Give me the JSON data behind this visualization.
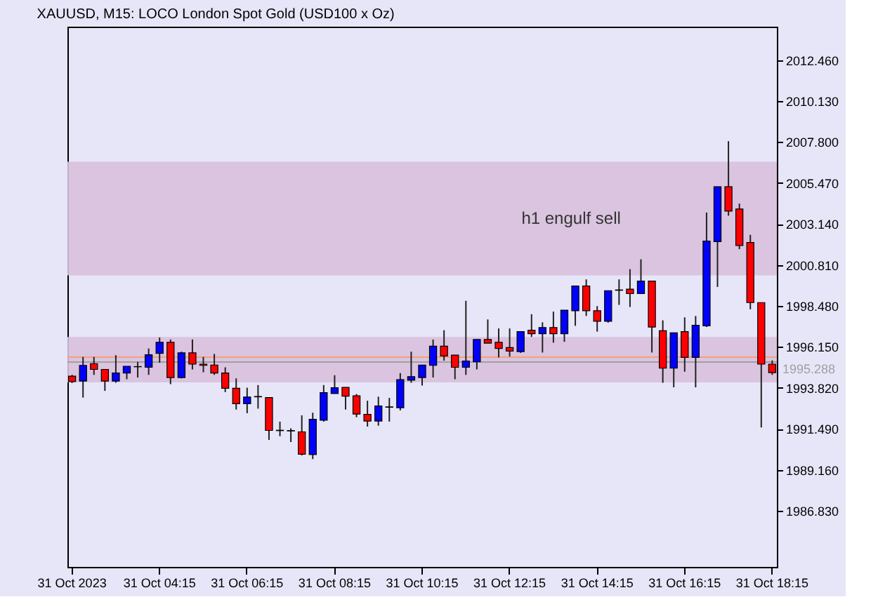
{
  "chart_data": {
    "type": "candlestick",
    "title": "XAUUSD, M15:  LOCO London Spot Gold (USD100 x Oz)",
    "categories": [
      "31 Oct 2023",
      null,
      null,
      null,
      null,
      null,
      null,
      null,
      "31 Oct 04:15",
      null,
      null,
      null,
      null,
      null,
      null,
      null,
      "31 Oct 06:15",
      null,
      null,
      null,
      null,
      null,
      null,
      null,
      "31 Oct 08:15",
      null,
      null,
      null,
      null,
      null,
      null,
      null,
      "31 Oct 10:15",
      null,
      null,
      null,
      null,
      null,
      null,
      null,
      "31 Oct 12:15",
      null,
      null,
      null,
      null,
      null,
      null,
      null,
      "31 Oct 14:15",
      null,
      null,
      null,
      null,
      null,
      null,
      null,
      "31 Oct 16:15",
      null,
      null,
      null,
      null,
      null,
      null,
      null,
      "31 Oct 18:15"
    ],
    "ohlc": [
      [
        1994.49,
        1994.56,
        1994.1,
        1994.18
      ],
      [
        1994.21,
        1995.58,
        1993.27,
        1995.1
      ],
      [
        1995.2,
        1995.58,
        1994.56,
        1994.87
      ],
      [
        1994.87,
        1994.87,
        1993.65,
        1994.21
      ],
      [
        1994.21,
        1995.68,
        1994.11,
        1994.67
      ],
      [
        1994.67,
        1995.05,
        1994.31,
        1995.05
      ],
      [
        1995.03,
        1995.3,
        1994.41,
        1995.02
      ],
      [
        1994.99,
        1996.06,
        1994.56,
        1995.7
      ],
      [
        1995.78,
        1996.69,
        1995.25,
        1996.41
      ],
      [
        1996.41,
        1996.57,
        1994.03,
        1994.41
      ],
      [
        1994.41,
        1995.88,
        1994.36,
        1995.81
      ],
      [
        1995.81,
        1996.57,
        1994.87,
        1995.17
      ],
      [
        1995.17,
        1995.58,
        1994.71,
        1995.1
      ],
      [
        1995.12,
        1995.75,
        1994.56,
        1994.67
      ],
      [
        1994.67,
        1994.99,
        1993.58,
        1993.8
      ],
      [
        1993.8,
        1994.36,
        1992.59,
        1992.92
      ],
      [
        1992.92,
        1993.83,
        1992.38,
        1993.3
      ],
      [
        1993.33,
        1993.98,
        1992.64,
        1993.31
      ],
      [
        1993.27,
        1993.27,
        1990.86,
        1991.4
      ],
      [
        1991.41,
        1991.9,
        1991.07,
        1991.39
      ],
      [
        1991.39,
        1991.52,
        1990.74,
        1991.37
      ],
      [
        1991.32,
        1992.26,
        1989.98,
        1990.05
      ],
      [
        1990.03,
        1992.41,
        1989.77,
        1992.03
      ],
      [
        1991.98,
        1993.98,
        1991.9,
        1993.55
      ],
      [
        1993.5,
        1994.54,
        1993.5,
        1993.83
      ],
      [
        1993.85,
        1993.85,
        1992.59,
        1993.35
      ],
      [
        1993.37,
        1993.47,
        1992.15,
        1992.33
      ],
      [
        1992.31,
        1993.09,
        1991.62,
        1991.93
      ],
      [
        1991.93,
        1993.32,
        1991.67,
        1992.79
      ],
      [
        1992.74,
        1993.25,
        1991.9,
        1992.72
      ],
      [
        1992.69,
        1994.66,
        1992.54,
        1994.29
      ],
      [
        1994.26,
        1995.88,
        1994.11,
        1994.46
      ],
      [
        1994.41,
        1995.12,
        1993.95,
        1995.12
      ],
      [
        1995.1,
        1996.57,
        1994.41,
        1996.19
      ],
      [
        1996.19,
        1997.1,
        1995.37,
        1995.63
      ],
      [
        1995.68,
        1995.68,
        1994.31,
        1994.99
      ],
      [
        1994.99,
        1998.77,
        1994.56,
        1995.35
      ],
      [
        1995.3,
        1996.57,
        1994.87,
        1996.57
      ],
      [
        1996.57,
        1997.71,
        1996.36,
        1996.36
      ],
      [
        1996.41,
        1997.2,
        1995.55,
        1996.06
      ],
      [
        1996.11,
        1997.2,
        1995.6,
        1995.91
      ],
      [
        1995.88,
        1997.02,
        1995.81,
        1997.02
      ],
      [
        1997.1,
        1998.01,
        1996.72,
        1996.9
      ],
      [
        1996.9,
        1997.55,
        1995.83,
        1997.25
      ],
      [
        1997.25,
        1998.16,
        1996.39,
        1996.9
      ],
      [
        1996.9,
        1998.24,
        1996.44,
        1998.24
      ],
      [
        1998.21,
        1999.61,
        1997.35,
        1999.61
      ],
      [
        1999.61,
        1999.99,
        1997.91,
        1998.21
      ],
      [
        1998.21,
        1998.47,
        1997.02,
        1997.61
      ],
      [
        1997.61,
        1999.35,
        1997.53,
        1999.35
      ],
      [
        1999.39,
        1999.99,
        1998.54,
        1999.37
      ],
      [
        1999.43,
        2000.57,
        1998.42,
        1999.18
      ],
      [
        1999.18,
        2001.13,
        1999.18,
        1999.89
      ],
      [
        1999.89,
        1999.89,
        1995.83,
        1997.28
      ],
      [
        1997.07,
        1997.66,
        1994.11,
        1994.94
      ],
      [
        1994.94,
        1996.95,
        1993.85,
        1996.95
      ],
      [
        1997.02,
        1997.83,
        1994.74,
        1995.55
      ],
      [
        1995.55,
        1997.91,
        1993.85,
        1997.38
      ],
      [
        1997.35,
        2003.79,
        1997.28,
        2002.17
      ],
      [
        2002.14,
        2005.26,
        1999.56,
        2005.26
      ],
      [
        2005.26,
        2007.85,
        2003.61,
        2003.87
      ],
      [
        2003.99,
        2004.3,
        2001.71,
        2001.92
      ],
      [
        2002.09,
        2002.52,
        1998.29,
        1998.67
      ],
      [
        1998.67,
        1998.67,
        1991.57,
        1995.17
      ],
      [
        1995.17,
        1995.38,
        1994.56,
        1994.69
      ]
    ],
    "colors": [
      "#ff0000",
      "#0000ff",
      "#ff0000",
      "#ff0000",
      "#0000ff",
      "#0000ff",
      "#ff0000",
      "#0000ff",
      "#0000ff",
      "#ff0000",
      "#0000ff",
      "#ff0000",
      "#ff0000",
      "#ff0000",
      "#ff0000",
      "#ff0000",
      "#0000ff",
      "#ff0000",
      "#ff0000",
      "#ff0000",
      "#ff0000",
      "#ff0000",
      "#0000ff",
      "#0000ff",
      "#0000ff",
      "#ff0000",
      "#ff0000",
      "#ff0000",
      "#0000ff",
      "#ff0000",
      "#0000ff",
      "#0000ff",
      "#0000ff",
      "#0000ff",
      "#ff0000",
      "#ff0000",
      "#0000ff",
      "#0000ff",
      "#ff0000",
      "#ff0000",
      "#ff0000",
      "#0000ff",
      "#ff0000",
      "#0000ff",
      "#ff0000",
      "#0000ff",
      "#0000ff",
      "#ff0000",
      "#ff0000",
      "#0000ff",
      "#ff0000",
      "#ff0000",
      "#0000ff",
      "#ff0000",
      "#ff0000",
      "#0000ff",
      "#ff0000",
      "#0000ff",
      "#0000ff",
      "#0000ff",
      "#ff0000",
      "#ff0000",
      "#ff0000",
      "#ff0000",
      "#ff0000"
    ],
    "bands": [
      {
        "axis": "y",
        "from": 2000.22,
        "to": 2006.68,
        "label": "h1 engulf sell",
        "color": "#d8c0dc"
      },
      {
        "axis": "y",
        "from": 1994.13,
        "to": 1996.72,
        "color": "#d8c0dc"
      }
    ],
    "ref_lines": [
      {
        "axis": "y",
        "value": 1995.57,
        "color": "#f4a07a"
      },
      {
        "axis": "y",
        "value": 1995.288,
        "label": "1995.288",
        "color": "#a0a0a0"
      }
    ],
    "ylim": [
      1983.64,
      2014.36
    ],
    "yticks": [
      {
        "value": 1986.83,
        "label": "1986.830"
      },
      {
        "value": 1989.16,
        "label": "1989.160"
      },
      {
        "value": 1991.49,
        "label": "1991.490"
      },
      {
        "value": 1993.82,
        "label": "1993.820"
      },
      {
        "value": 1996.15,
        "label": "1996.150"
      },
      {
        "value": 1998.48,
        "label": "1998.480"
      },
      {
        "value": 2000.81,
        "label": "2000.810"
      },
      {
        "value": 2003.14,
        "label": "2003.140"
      },
      {
        "value": 2005.47,
        "label": "2005.470"
      },
      {
        "value": 2007.8,
        "label": "2007.800"
      },
      {
        "value": 2010.13,
        "label": "2010.130"
      },
      {
        "value": 2012.46,
        "label": "2012.460"
      }
    ],
    "grid": false
  }
}
